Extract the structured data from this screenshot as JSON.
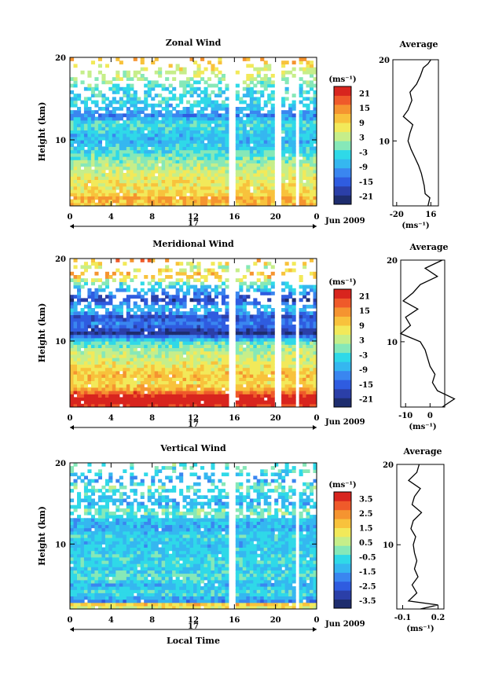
{
  "chart_data": [
    {
      "type": "heatmap",
      "name": "zonal",
      "title": "Zonal Wind",
      "ylabel": "Height (km)",
      "xlabel": "",
      "x_ticks": [
        "0",
        "4",
        "8",
        "12",
        "16",
        "20",
        "0"
      ],
      "y_ticks": [
        "20",
        "10"
      ],
      "ylim": [
        2,
        20
      ],
      "xlim": [
        0,
        24
      ],
      "date_marker": "17",
      "date_label": "Jun 2009",
      "colorbar": {
        "unit": "(ms⁻¹)",
        "ticks": [
          "21",
          "15",
          "9",
          "3",
          "-3",
          "-9",
          "-15",
          "-21"
        ],
        "range": [
          -24,
          24
        ]
      },
      "gaps_hours": [
        15.6,
        16.0,
        20.0,
        20.4,
        22.0,
        22.4
      ],
      "profile_km": [
        {
          "h": 2,
          "v": 13
        },
        {
          "h": 3,
          "v": 15
        },
        {
          "h": 3.5,
          "v": 10
        },
        {
          "h": 4.5,
          "v": 9
        },
        {
          "h": 6,
          "v": 6
        },
        {
          "h": 7,
          "v": 3
        },
        {
          "h": 8,
          "v": -1
        },
        {
          "h": 9,
          "v": -5
        },
        {
          "h": 10,
          "v": -8
        },
        {
          "h": 11,
          "v": -6
        },
        {
          "h": 12,
          "v": -3
        },
        {
          "h": 13,
          "v": -13
        },
        {
          "h": 13.8,
          "v": -8
        },
        {
          "h": 15,
          "v": -4
        },
        {
          "h": 16,
          "v": -6
        },
        {
          "h": 17,
          "v": 1
        },
        {
          "h": 18,
          "v": 5
        },
        {
          "h": 19,
          "v": 8
        },
        {
          "h": 19.5,
          "v": 13
        },
        {
          "h": 20,
          "v": 16
        }
      ],
      "profile": {
        "title": "Average",
        "xlim": [
          -24,
          24
        ],
        "x_ticks": [
          "-20",
          "16"
        ],
        "y_ticks": [
          "20",
          "10"
        ],
        "unit": "(ms⁻¹)"
      }
    },
    {
      "type": "heatmap",
      "name": "meridional",
      "title": "Meridional Wind",
      "ylabel": "Height (km)",
      "xlabel": "",
      "x_ticks": [
        "0",
        "4",
        "8",
        "12",
        "16",
        "20",
        "0"
      ],
      "y_ticks": [
        "20",
        "10"
      ],
      "ylim": [
        2,
        20
      ],
      "xlim": [
        0,
        24
      ],
      "date_marker": "17",
      "date_label": "Jun 2009",
      "colorbar": {
        "unit": "(ms⁻¹)",
        "ticks": [
          "21",
          "15",
          "9",
          "3",
          "-3",
          "-9",
          "-15",
          "-21"
        ],
        "range": [
          -24,
          24
        ]
      },
      "gaps_hours": [
        15.6,
        16.0,
        20.0,
        20.4,
        22.0,
        22.4
      ],
      "profile_km": [
        {
          "h": 2,
          "v": 5
        },
        {
          "h": 3,
          "v": 10
        },
        {
          "h": 4,
          "v": 3
        },
        {
          "h": 5,
          "v": 1
        },
        {
          "h": 6,
          "v": 2
        },
        {
          "h": 7,
          "v": 0
        },
        {
          "h": 8,
          "v": -1
        },
        {
          "h": 9,
          "v": -2
        },
        {
          "h": 10,
          "v": -4
        },
        {
          "h": 11,
          "v": -12
        },
        {
          "h": 12,
          "v": -8
        },
        {
          "h": 13,
          "v": -10
        },
        {
          "h": 14,
          "v": -5
        },
        {
          "h": 15,
          "v": -11
        },
        {
          "h": 16,
          "v": -7
        },
        {
          "h": 17,
          "v": -4
        },
        {
          "h": 18,
          "v": 3
        },
        {
          "h": 19,
          "v": -2
        },
        {
          "h": 20,
          "v": 5
        }
      ],
      "profile": {
        "title": "Average",
        "xlim": [
          -12,
          6
        ],
        "x_ticks": [
          "-10",
          "0"
        ],
        "y_ticks": [
          "20",
          "10"
        ],
        "unit": "(ms⁻¹)"
      }
    },
    {
      "type": "heatmap",
      "name": "vertical",
      "title": "Vertical Wind",
      "ylabel": "Height (km)",
      "xlabel": "Local Time",
      "x_ticks": [
        "0",
        "4",
        "8",
        "12",
        "16",
        "20",
        "0"
      ],
      "y_ticks": [
        "20",
        "10"
      ],
      "ylim": [
        2,
        20
      ],
      "xlim": [
        0,
        24
      ],
      "date_marker": "17",
      "date_label": "Jun 2009",
      "colorbar": {
        "unit": "(ms⁻¹)",
        "ticks": [
          "3.5",
          "2.5",
          "1.5",
          "0.5",
          "-0.5",
          "-1.5",
          "-2.5",
          "-3.5"
        ],
        "range": [
          -4,
          4
        ]
      },
      "gaps_hours": [
        15.6,
        16.0,
        22.0,
        22.4
      ],
      "profile_km": [
        {
          "h": 2,
          "v": 0.05
        },
        {
          "h": 2.5,
          "v": 0.2
        },
        {
          "h": 3,
          "v": -0.05
        },
        {
          "h": 4,
          "v": 0.02
        },
        {
          "h": 5,
          "v": -0.02
        },
        {
          "h": 6,
          "v": 0.03
        },
        {
          "h": 7,
          "v": 0.0
        },
        {
          "h": 8,
          "v": 0.02
        },
        {
          "h": 9,
          "v": 0.0
        },
        {
          "h": 10,
          "v": -0.01
        },
        {
          "h": 11,
          "v": 0.01
        },
        {
          "h": 12,
          "v": -0.03
        },
        {
          "h": 13,
          "v": -0.01
        },
        {
          "h": 14,
          "v": 0.06
        },
        {
          "h": 15,
          "v": -0.02
        },
        {
          "h": 16,
          "v": 0.0
        },
        {
          "h": 17,
          "v": 0.05
        },
        {
          "h": 18,
          "v": -0.05
        },
        {
          "h": 19,
          "v": 0.02
        },
        {
          "h": 20,
          "v": 0.04
        }
      ],
      "profile": {
        "title": "Average",
        "xlim": [
          -0.15,
          0.25
        ],
        "x_ticks": [
          "-0.1",
          "0.2"
        ],
        "y_ticks": [
          "20",
          "10"
        ],
        "unit": "(ms⁻¹)"
      }
    }
  ]
}
